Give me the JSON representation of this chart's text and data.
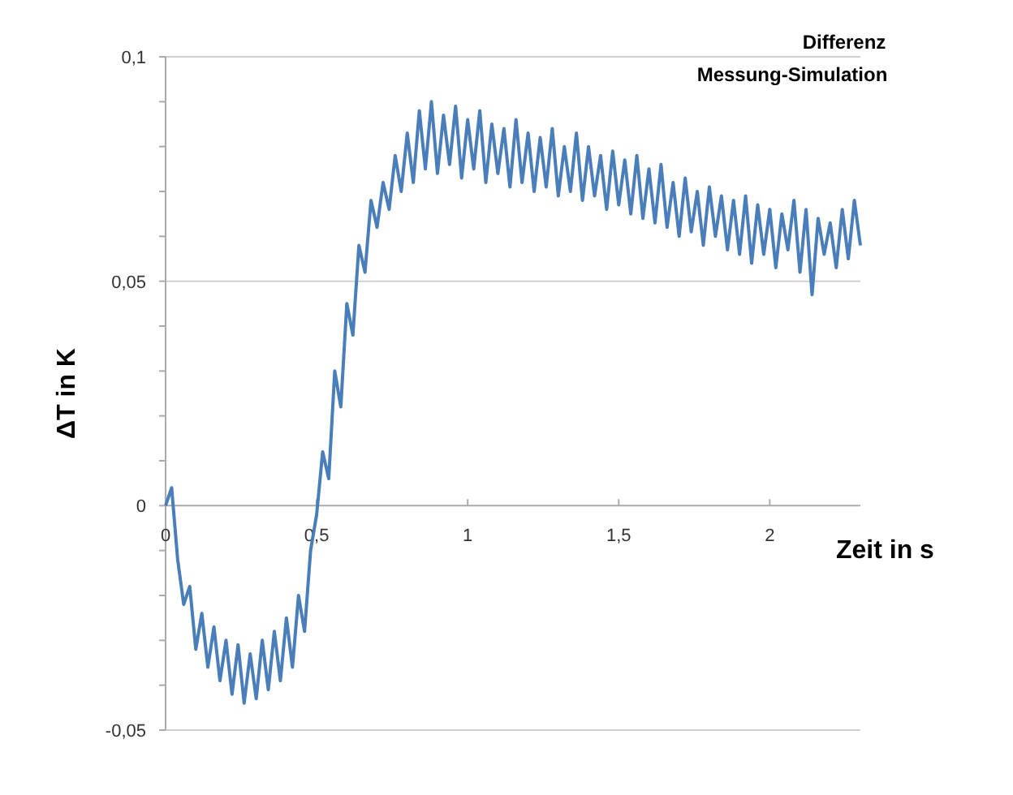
{
  "chart_data": {
    "type": "line",
    "title": "Differenz",
    "subtitle": "Messung-Simulation",
    "xlabel": "Zeit in s",
    "ylabel": "ΔT in K",
    "xlim": [
      0,
      2.3
    ],
    "ylim": [
      -0.05,
      0.1
    ],
    "xticks": [
      0,
      {
        "value": 0.5,
        "label": "0,5"
      },
      1,
      {
        "value": 1.5,
        "label": "1,5"
      },
      2
    ],
    "yticks": [
      {
        "value": -0.05,
        "label": "-0,05"
      },
      {
        "value": -0.04,
        "label": null
      },
      {
        "value": -0.03,
        "label": null
      },
      {
        "value": -0.02,
        "label": null
      },
      {
        "value": -0.01,
        "label": null
      },
      0,
      {
        "value": 0.01,
        "label": null
      },
      {
        "value": 0.02,
        "label": null
      },
      {
        "value": 0.03,
        "label": null
      },
      {
        "value": 0.04,
        "label": null
      },
      {
        "value": 0.05,
        "label": "0,05"
      },
      {
        "value": 0.06,
        "label": null
      },
      {
        "value": 0.07,
        "label": null
      },
      {
        "value": 0.08,
        "label": null
      },
      {
        "value": 0.09,
        "label": null
      },
      {
        "value": 0.1,
        "label": "0,1"
      }
    ],
    "grid": "y",
    "marker": "none",
    "line_style": "solid",
    "x": [
      0,
      0.02,
      0.04,
      0.06,
      0.08,
      0.1,
      0.12,
      0.14,
      0.16,
      0.18,
      0.2,
      0.22,
      0.24,
      0.26,
      0.28,
      0.3,
      0.32,
      0.34,
      0.36,
      0.38,
      0.4,
      0.42,
      0.44,
      0.46,
      0.48,
      0.5,
      0.52,
      0.54,
      0.56,
      0.58,
      0.6,
      0.62,
      0.64,
      0.66,
      0.68,
      0.7,
      0.72,
      0.74,
      0.76,
      0.78,
      0.8,
      0.82,
      0.84,
      0.86,
      0.88,
      0.9,
      0.92,
      0.94,
      0.96,
      0.98,
      1,
      1.02,
      1.04,
      1.06,
      1.08,
      1.1,
      1.12,
      1.14,
      1.16,
      1.18,
      1.2,
      1.22,
      1.24,
      1.26,
      1.28,
      1.3,
      1.32,
      1.34,
      1.36,
      1.38,
      1.4,
      1.42,
      1.44,
      1.46,
      1.48,
      1.5,
      1.52,
      1.54,
      1.56,
      1.58,
      1.6,
      1.62,
      1.64,
      1.66,
      1.68,
      1.7,
      1.72,
      1.74,
      1.76,
      1.78,
      1.8,
      1.82,
      1.84,
      1.86,
      1.88,
      1.9,
      1.92,
      1.94,
      1.96,
      1.98,
      2,
      2.02,
      2.04,
      2.06,
      2.08,
      2.1,
      2.12,
      2.14,
      2.16,
      2.18,
      2.2,
      2.22,
      2.24,
      2.26,
      2.28,
      2.3
    ],
    "series": [
      {
        "color": "#4a7ebb",
        "values": [
          0,
          0.004,
          -0.012,
          -0.022,
          -0.018,
          -0.032,
          -0.024,
          -0.036,
          -0.027,
          -0.039,
          -0.03,
          -0.042,
          -0.031,
          -0.044,
          -0.033,
          -0.043,
          -0.03,
          -0.041,
          -0.028,
          -0.039,
          -0.025,
          -0.036,
          -0.02,
          -0.028,
          -0.01,
          -0.002,
          0.012,
          0.006,
          0.03,
          0.022,
          0.045,
          0.038,
          0.058,
          0.052,
          0.068,
          0.062,
          0.072,
          0.066,
          0.078,
          0.07,
          0.083,
          0.072,
          0.088,
          0.075,
          0.09,
          0.074,
          0.087,
          0.076,
          0.089,
          0.073,
          0.086,
          0.075,
          0.088,
          0.072,
          0.085,
          0.074,
          0.084,
          0.071,
          0.086,
          0.072,
          0.083,
          0.07,
          0.082,
          0.071,
          0.084,
          0.069,
          0.08,
          0.07,
          0.083,
          0.068,
          0.08,
          0.069,
          0.078,
          0.066,
          0.079,
          0.067,
          0.077,
          0.065,
          0.078,
          0.064,
          0.075,
          0.063,
          0.076,
          0.062,
          0.072,
          0.06,
          0.073,
          0.061,
          0.07,
          0.058,
          0.071,
          0.06,
          0.069,
          0.057,
          0.068,
          0.056,
          0.069,
          0.054,
          0.067,
          0.056,
          0.066,
          0.053,
          0.065,
          0.057,
          0.068,
          0.052,
          0.066,
          0.047,
          0.064,
          0.056,
          0.063,
          0.053,
          0.066,
          0.055,
          0.068,
          0.058
        ]
      }
    ]
  }
}
